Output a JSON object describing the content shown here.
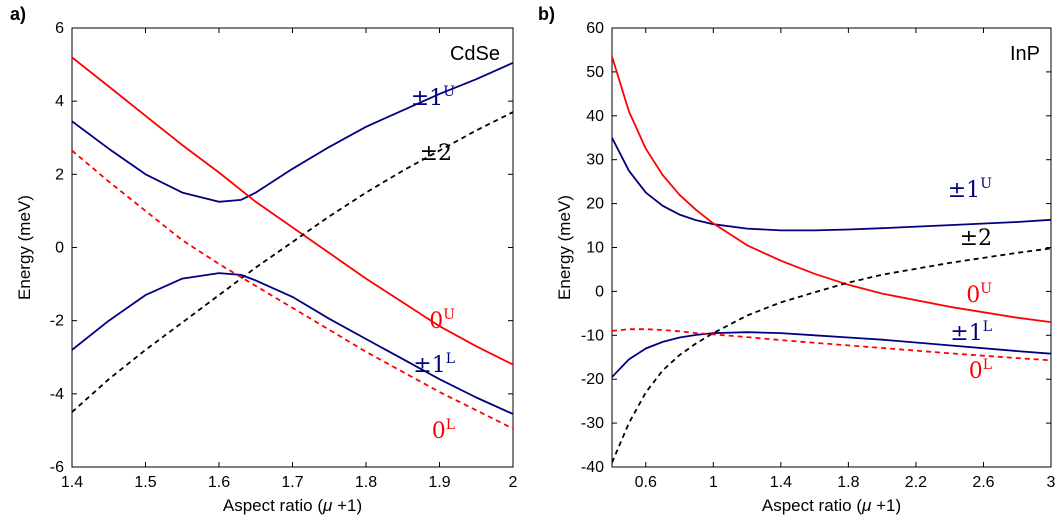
{
  "chart_data": [
    {
      "type": "line",
      "panel_label": "a)",
      "material": "CdSe",
      "xlabel_prefix": "Aspect ratio (",
      "xlabel_symbol": "μ",
      "xlabel_suffix": " +1)",
      "ylabel": "Energy (meV)",
      "xlim": [
        1.4,
        2.0
      ],
      "ylim": [
        -6,
        6
      ],
      "xticks": [
        1.4,
        1.5,
        1.6,
        1.7,
        1.8,
        1.9,
        2.0
      ],
      "xtick_labels": [
        "1.4",
        "1.5",
        "1.6",
        "1.7",
        "1.8",
        "1.9",
        "2"
      ],
      "yticks": [
        -6,
        -4,
        -2,
        0,
        2,
        4,
        6
      ],
      "ytick_labels": [
        "-6",
        "-4",
        "-2",
        "0",
        "2",
        "4",
        "6"
      ],
      "grid": false,
      "series": [
        {
          "name": "±1U",
          "label_main": "±1",
          "label_sup": "U",
          "color": "#000080",
          "dash": false,
          "x": [
            1.4,
            1.45,
            1.5,
            1.55,
            1.6,
            1.63,
            1.65,
            1.7,
            1.75,
            1.8,
            1.85,
            1.9,
            1.95,
            2.0
          ],
          "y": [
            3.45,
            2.7,
            2.0,
            1.5,
            1.25,
            1.3,
            1.5,
            2.15,
            2.75,
            3.3,
            3.75,
            4.2,
            4.6,
            5.05
          ]
        },
        {
          "name": "0U",
          "label_main": "0",
          "label_sup": "U",
          "color": "#ff0000",
          "dash": false,
          "x": [
            1.4,
            1.45,
            1.5,
            1.55,
            1.6,
            1.65,
            1.7,
            1.75,
            1.8,
            1.85,
            1.9,
            1.95,
            2.0
          ],
          "y": [
            5.2,
            4.4,
            3.6,
            2.8,
            2.05,
            1.25,
            0.55,
            -0.15,
            -0.85,
            -1.5,
            -2.15,
            -2.7,
            -3.2
          ]
        },
        {
          "name": "±2",
          "label_main": "±2",
          "label_sup": "",
          "color": "#000000",
          "dash": true,
          "x": [
            1.4,
            1.45,
            1.5,
            1.55,
            1.6,
            1.65,
            1.7,
            1.75,
            1.8,
            1.85,
            1.9,
            1.95,
            2.0
          ],
          "y": [
            -4.5,
            -3.6,
            -2.8,
            -2.05,
            -1.3,
            -0.55,
            0.15,
            0.85,
            1.5,
            2.1,
            2.65,
            3.2,
            3.7
          ]
        },
        {
          "name": "±1L",
          "label_main": "±1",
          "label_sup": "L",
          "color": "#000080",
          "dash": false,
          "x": [
            1.4,
            1.45,
            1.5,
            1.55,
            1.6,
            1.63,
            1.65,
            1.7,
            1.75,
            1.8,
            1.85,
            1.9,
            1.95,
            2.0
          ],
          "y": [
            -2.8,
            -2.0,
            -1.3,
            -0.85,
            -0.7,
            -0.75,
            -0.9,
            -1.35,
            -1.95,
            -2.5,
            -3.05,
            -3.6,
            -4.1,
            -4.55
          ]
        },
        {
          "name": "0L",
          "label_main": "0",
          "label_sup": "L",
          "color": "#ff0000",
          "dash": true,
          "x": [
            1.4,
            1.45,
            1.5,
            1.55,
            1.6,
            1.65,
            1.7,
            1.75,
            1.8,
            1.85,
            1.9,
            1.95,
            2.0
          ],
          "y": [
            2.65,
            1.8,
            1.0,
            0.2,
            -0.45,
            -1.05,
            -1.65,
            -2.25,
            -2.85,
            -3.4,
            -3.95,
            -4.45,
            -4.95
          ]
        }
      ]
    },
    {
      "type": "line",
      "panel_label": "b)",
      "material": "InP",
      "xlabel_prefix": "Aspect ratio (",
      "xlabel_symbol": "μ",
      "xlabel_suffix": " +1)",
      "ylabel": "Energy (meV)",
      "xlim": [
        0.4,
        3.0
      ],
      "ylim": [
        -40,
        60
      ],
      "xticks": [
        0.6,
        1.0,
        1.4,
        1.8,
        2.2,
        2.6,
        3.0
      ],
      "xtick_labels": [
        "0.6",
        "1",
        "1.4",
        "1.8",
        "2.2",
        "2.6",
        "3"
      ],
      "yticks": [
        -40,
        -30,
        -20,
        -10,
        0,
        10,
        20,
        30,
        40,
        50,
        60
      ],
      "ytick_labels": [
        "-40",
        "-30",
        "-20",
        "-10",
        "0",
        "10",
        "20",
        "30",
        "40",
        "50",
        "60"
      ],
      "grid": false,
      "series": [
        {
          "name": "±1U",
          "label_main": "±1",
          "label_sup": "U",
          "color": "#000080",
          "dash": false,
          "x": [
            0.4,
            0.5,
            0.6,
            0.7,
            0.8,
            0.9,
            1.0,
            1.2,
            1.4,
            1.6,
            1.8,
            2.0,
            2.4,
            2.8,
            3.0
          ],
          "y": [
            35,
            27.5,
            22.5,
            19.5,
            17.5,
            16.2,
            15.3,
            14.3,
            13.9,
            13.9,
            14.1,
            14.4,
            15.1,
            15.8,
            16.3
          ]
        },
        {
          "name": "0U",
          "label_main": "0",
          "label_sup": "U",
          "color": "#ff0000",
          "dash": false,
          "x": [
            0.4,
            0.5,
            0.6,
            0.7,
            0.8,
            0.9,
            1.0,
            1.2,
            1.4,
            1.6,
            1.8,
            2.0,
            2.4,
            2.8,
            3.0
          ],
          "y": [
            53.5,
            41,
            32.5,
            26.5,
            22,
            18.5,
            15.5,
            10.5,
            7,
            4,
            1.5,
            -0.5,
            -3.5,
            -6,
            -7
          ]
        },
        {
          "name": "±2",
          "label_main": "±2",
          "label_sup": "",
          "color": "#000000",
          "dash": true,
          "x": [
            0.4,
            0.5,
            0.6,
            0.7,
            0.8,
            0.9,
            1.0,
            1.2,
            1.4,
            1.6,
            1.8,
            2.0,
            2.4,
            2.8,
            3.0
          ],
          "y": [
            -39,
            -30,
            -23,
            -18,
            -14.5,
            -11.8,
            -9.5,
            -5.5,
            -2.5,
            -0.2,
            2,
            3.8,
            6.5,
            8.8,
            9.8
          ]
        },
        {
          "name": "±1L",
          "label_main": "±1",
          "label_sup": "L",
          "color": "#000080",
          "dash": false,
          "x": [
            0.4,
            0.5,
            0.6,
            0.7,
            0.8,
            0.9,
            1.0,
            1.2,
            1.4,
            1.6,
            1.8,
            2.0,
            2.4,
            2.8,
            3.0
          ],
          "y": [
            -19.5,
            -15.5,
            -13,
            -11.5,
            -10.5,
            -9.9,
            -9.5,
            -9.3,
            -9.5,
            -10,
            -10.5,
            -11,
            -12.3,
            -13.6,
            -14.2
          ]
        },
        {
          "name": "0L",
          "label_main": "0",
          "label_sup": "L",
          "color": "#ff0000",
          "dash": true,
          "x": [
            0.4,
            0.5,
            0.6,
            0.7,
            0.8,
            0.9,
            1.0,
            1.2,
            1.4,
            1.6,
            1.8,
            2.0,
            2.4,
            2.8,
            3.0
          ],
          "y": [
            -9,
            -8.6,
            -8.6,
            -8.8,
            -9.1,
            -9.5,
            -9.8,
            -10.4,
            -11.1,
            -11.7,
            -12.3,
            -12.9,
            -14.1,
            -15.2,
            -15.7
          ]
        }
      ]
    }
  ]
}
